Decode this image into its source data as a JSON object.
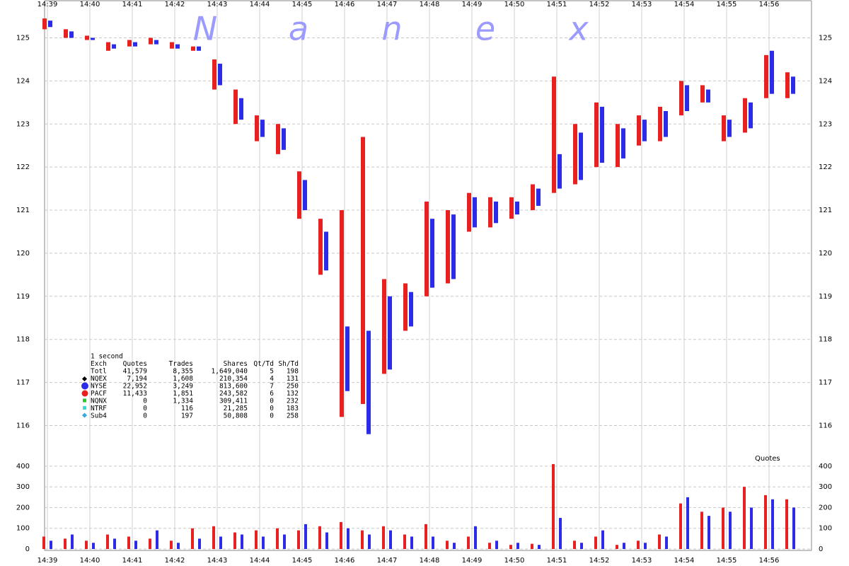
{
  "chart_data": [
    {
      "type": "range",
      "watermark": [
        "N",
        "a",
        "n",
        "e",
        "x"
      ],
      "x": [
        39,
        39.5,
        40,
        40.5,
        41,
        41.5,
        42,
        42.5,
        43,
        43.5,
        44,
        44.5,
        45,
        45.5,
        46,
        46.5,
        47,
        47.5,
        48,
        48.5,
        49,
        49.5,
        50,
        50.5,
        51,
        51.5,
        52,
        52.5,
        53,
        53.5,
        54,
        54.5,
        55,
        55.5,
        56,
        56.5
      ],
      "xlim": [
        39,
        57
      ],
      "xticks": [
        {
          "value": 39,
          "label": "14:39"
        },
        {
          "value": 40,
          "label": "14:40"
        },
        {
          "value": 41,
          "label": "14:41"
        },
        {
          "value": 42,
          "label": "14:42"
        },
        {
          "value": 43,
          "label": "14:43"
        },
        {
          "value": 44,
          "label": "14:44"
        },
        {
          "value": 45,
          "label": "14:45"
        },
        {
          "value": 46,
          "label": "14:46"
        },
        {
          "value": 47,
          "label": "14:47"
        },
        {
          "value": 48,
          "label": "14:48"
        },
        {
          "value": 49,
          "label": "14:49"
        },
        {
          "value": 50,
          "label": "14:50"
        },
        {
          "value": 51,
          "label": "14:51"
        },
        {
          "value": 52,
          "label": "14:52"
        },
        {
          "value": 53,
          "label": "14:53"
        },
        {
          "value": 54,
          "label": "14:54"
        },
        {
          "value": 55,
          "label": "14:55"
        },
        {
          "value": 56,
          "label": "14:56"
        }
      ],
      "ylim": [
        115.4,
        125.55
      ],
      "yticks": [
        116,
        117,
        118,
        119,
        120,
        121,
        122,
        123,
        124,
        125
      ],
      "grid": true,
      "series": [
        {
          "color": "#e82020",
          "low": [
            125.2,
            125.0,
            124.95,
            124.7,
            124.8,
            124.85,
            124.75,
            124.7,
            123.8,
            123.0,
            122.6,
            122.3,
            120.8,
            119.5,
            116.2,
            116.5,
            117.2,
            118.2,
            119.0,
            119.3,
            120.5,
            120.6,
            120.8,
            121.0,
            121.4,
            121.6,
            122.0,
            122.0,
            122.5,
            122.6,
            123.2,
            123.5,
            122.6,
            122.8,
            123.6,
            123.6
          ],
          "high": [
            125.45,
            125.2,
            125.05,
            124.9,
            124.95,
            125.0,
            124.9,
            124.8,
            124.5,
            123.8,
            123.2,
            123.0,
            121.9,
            120.8,
            121.0,
            122.7,
            119.4,
            119.3,
            121.2,
            121.0,
            121.4,
            121.3,
            121.3,
            121.6,
            124.1,
            123.0,
            123.5,
            123.0,
            123.2,
            123.4,
            124.0,
            123.9,
            123.2,
            123.6,
            124.6,
            124.2
          ]
        },
        {
          "color": "#2c2ce8",
          "low": [
            125.25,
            125.0,
            124.95,
            124.75,
            124.8,
            124.85,
            124.75,
            124.7,
            123.9,
            123.1,
            122.7,
            122.4,
            121.0,
            119.6,
            116.8,
            115.8,
            117.3,
            118.3,
            119.2,
            119.4,
            120.6,
            120.7,
            120.9,
            121.1,
            121.5,
            121.7,
            122.1,
            122.2,
            122.6,
            122.7,
            123.3,
            123.5,
            122.7,
            122.9,
            123.7,
            123.7
          ],
          "high": [
            125.4,
            125.15,
            125.0,
            124.85,
            124.9,
            124.95,
            124.85,
            124.8,
            124.4,
            123.6,
            123.1,
            122.9,
            121.7,
            120.5,
            118.3,
            118.2,
            119.0,
            119.1,
            120.8,
            120.9,
            121.3,
            121.2,
            121.2,
            121.5,
            122.3,
            122.8,
            123.4,
            122.9,
            123.1,
            123.3,
            123.9,
            123.8,
            123.1,
            123.5,
            124.7,
            124.1
          ]
        }
      ]
    },
    {
      "type": "bar",
      "title": "Quotes",
      "x": [
        39,
        39.5,
        40,
        40.5,
        41,
        41.5,
        42,
        42.5,
        43,
        43.5,
        44,
        44.5,
        45,
        45.5,
        46,
        46.5,
        47,
        47.5,
        48,
        48.5,
        49,
        49.5,
        50,
        50.5,
        51,
        51.5,
        52,
        52.5,
        53,
        53.5,
        54,
        54.5,
        55,
        55.5,
        56,
        56.5
      ],
      "xlim": [
        39,
        57
      ],
      "xticks": [
        {
          "value": 39,
          "label": "14:39"
        },
        {
          "value": 40,
          "label": "14:40"
        },
        {
          "value": 41,
          "label": "14:41"
        },
        {
          "value": 42,
          "label": "14:42"
        },
        {
          "value": 43,
          "label": "14:43"
        },
        {
          "value": 44,
          "label": "14:44"
        },
        {
          "value": 45,
          "label": "14:45"
        },
        {
          "value": 46,
          "label": "14:46"
        },
        {
          "value": 47,
          "label": "14:47"
        },
        {
          "value": 48,
          "label": "14:48"
        },
        {
          "value": 49,
          "label": "14:49"
        },
        {
          "value": 50,
          "label": "14:50"
        },
        {
          "value": 51,
          "label": "14:51"
        },
        {
          "value": 52,
          "label": "14:52"
        },
        {
          "value": 53,
          "label": "14:53"
        },
        {
          "value": 54,
          "label": "14:54"
        },
        {
          "value": 55,
          "label": "14:55"
        },
        {
          "value": 56,
          "label": "14:56"
        }
      ],
      "ylim": [
        0,
        420
      ],
      "yticks": [
        0,
        100,
        200,
        300,
        400
      ],
      "grid": true,
      "series": [
        {
          "color": "#e82020",
          "values": [
            60,
            50,
            40,
            70,
            60,
            50,
            40,
            100,
            110,
            80,
            90,
            100,
            90,
            110,
            130,
            90,
            110,
            70,
            120,
            40,
            60,
            30,
            20,
            25,
            410,
            40,
            60,
            20,
            40,
            70,
            220,
            180,
            200,
            300,
            260,
            240
          ]
        },
        {
          "color": "#2c2ce8",
          "values": [
            40,
            70,
            30,
            50,
            40,
            90,
            30,
            50,
            60,
            70,
            60,
            70,
            120,
            80,
            100,
            70,
            90,
            60,
            60,
            30,
            110,
            40,
            30,
            20,
            150,
            30,
            90,
            30,
            30,
            60,
            250,
            160,
            180,
            200,
            240,
            200
          ]
        }
      ]
    }
  ],
  "stats": {
    "title": "1 second",
    "columns": [
      "Exch",
      "Quotes",
      "Trades",
      "Shares",
      "Qt/Td",
      "Sh/Td"
    ],
    "rows": [
      [
        "Totl",
        "41,579",
        "8,355",
        "1,649,040",
        "5",
        "198"
      ],
      [
        "NQEX",
        "7,194",
        "1,608",
        "210,354",
        "4",
        "131"
      ],
      [
        "NYSE",
        "22,952",
        "3,249",
        "813,600",
        "7",
        "250"
      ],
      [
        "PACF",
        "11,433",
        "1,851",
        "243,582",
        "6",
        "132"
      ],
      [
        "NQNX",
        "0",
        "1,334",
        "309,411",
        "0",
        "232"
      ],
      [
        "NTRF",
        "0",
        "116",
        "21,285",
        "0",
        "183"
      ],
      [
        "Sub4",
        "0",
        "197",
        "50,808",
        "0",
        "258"
      ]
    ]
  }
}
